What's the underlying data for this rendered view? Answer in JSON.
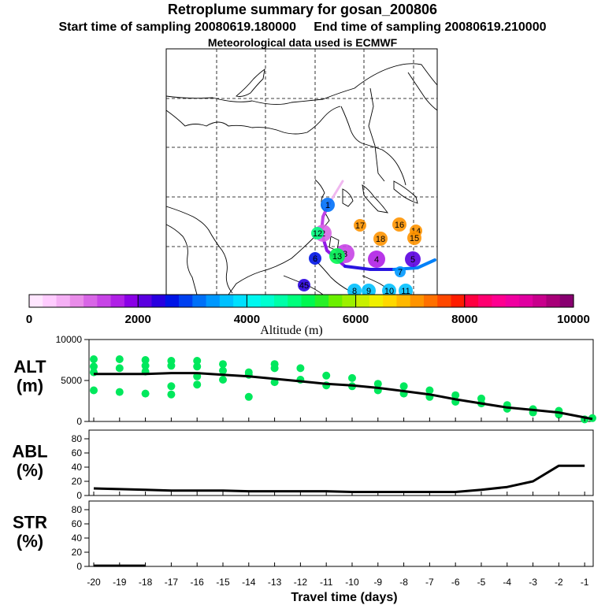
{
  "header": {
    "title": "Retroplume summary for gosan_200806",
    "start_label": "Start time of sampling 20080619.180000",
    "end_label": "End time of sampling 20080619.210000",
    "met_label": "Meteorological data used is ECMWF"
  },
  "colorbar": {
    "ticks": [
      "0",
      "2000",
      "4000",
      "6000",
      "8000",
      "10000"
    ],
    "label": "Altitude (m)",
    "min": 0,
    "max": 10000,
    "colors": [
      "#ffe6ff",
      "#ffccff",
      "#f5b0f5",
      "#e98ce9",
      "#d866e6",
      "#c744e6",
      "#b020e6",
      "#8a00e6",
      "#5a00e0",
      "#2800e0",
      "#0014e6",
      "#0040f0",
      "#0070f8",
      "#0098ff",
      "#00c0ff",
      "#00e0ff",
      "#00f8f0",
      "#00ffd0",
      "#00ffa8",
      "#00ff7c",
      "#00f850",
      "#28f028",
      "#6af000",
      "#9cf000",
      "#c8f000",
      "#f0f000",
      "#ffd800",
      "#ffb800",
      "#ff9400",
      "#ff7000",
      "#ff4800",
      "#ff1c00",
      "#ff0040",
      "#ff0070",
      "#ff0090",
      "#f000a0",
      "#e000a0",
      "#c8008c",
      "#a80078",
      "#880070"
    ]
  },
  "map": {
    "trajectory_labels": [
      "1",
      "2",
      "3",
      "4",
      "5",
      "6",
      "7",
      "8",
      "9",
      "10",
      "11",
      "12",
      "13",
      "14",
      "15",
      "16",
      "17",
      "18",
      "45"
    ]
  },
  "chart_data": [
    {
      "type": "line",
      "panel": "ALT",
      "ylabel": "ALT\n(m)",
      "xlabel": "Travel time (days)",
      "x": [
        -0.7,
        -2,
        -3,
        -4,
        -5,
        -6,
        -7,
        -8,
        -9,
        -10,
        -11,
        -12,
        -13,
        -14,
        -15,
        -16,
        -17,
        -18,
        -19,
        -20
      ],
      "y": [
        300,
        1100,
        1400,
        1700,
        2200,
        2700,
        3300,
        3700,
        4100,
        4400,
        4600,
        4900,
        5200,
        5500,
        5700,
        5900,
        5900,
        5800,
        5800,
        5800
      ],
      "ylim": [
        0,
        10000
      ],
      "yticks": [
        "0",
        "5000",
        "10000"
      ],
      "scatter": {
        "color": "#00e85c",
        "points": [
          [
            -0.7,
            400
          ],
          [
            -1,
            250
          ],
          [
            -2,
            1300
          ],
          [
            -2,
            850
          ],
          [
            -3,
            1500
          ],
          [
            -3,
            1100
          ],
          [
            -4,
            2000
          ],
          [
            -4,
            1550
          ],
          [
            -5,
            2800
          ],
          [
            -5,
            2200
          ],
          [
            -6,
            3200
          ],
          [
            -6,
            2400
          ],
          [
            -7,
            3800
          ],
          [
            -7,
            3000
          ],
          [
            -8,
            4300
          ],
          [
            -8,
            3400
          ],
          [
            -9,
            4600
          ],
          [
            -9,
            3800
          ],
          [
            -10,
            5300
          ],
          [
            -10,
            4300
          ],
          [
            -11,
            5600
          ],
          [
            -11,
            4400
          ],
          [
            -12,
            6500
          ],
          [
            -12,
            5100
          ],
          [
            -13,
            7000
          ],
          [
            -13,
            6500
          ],
          [
            -13,
            4800
          ],
          [
            -14,
            6000
          ],
          [
            -14,
            5700
          ],
          [
            -14,
            3000
          ],
          [
            -15,
            7000
          ],
          [
            -15,
            6200
          ],
          [
            -15,
            5100
          ],
          [
            -16,
            7400
          ],
          [
            -16,
            6700
          ],
          [
            -16,
            5500
          ],
          [
            -16,
            4500
          ],
          [
            -17,
            7400
          ],
          [
            -17,
            6800
          ],
          [
            -17,
            4300
          ],
          [
            -17,
            3300
          ],
          [
            -18,
            7500
          ],
          [
            -18,
            6800
          ],
          [
            -18,
            6100
          ],
          [
            -18,
            3400
          ],
          [
            -19,
            7600
          ],
          [
            -19,
            6500
          ],
          [
            -19,
            3600
          ],
          [
            -20,
            7600
          ],
          [
            -20,
            6700
          ],
          [
            -20,
            6000
          ],
          [
            -20,
            3800
          ]
        ]
      }
    },
    {
      "type": "line",
      "panel": "ABL",
      "ylabel": "ABL\n(%)",
      "x": [
        -1,
        -2,
        -3,
        -4,
        -5,
        -6,
        -7,
        -8,
        -9,
        -10,
        -11,
        -12,
        -13,
        -14,
        -15,
        -16,
        -17,
        -18,
        -19,
        -20
      ],
      "y": [
        42,
        42,
        20,
        12,
        8,
        5,
        5,
        5,
        5,
        5,
        6,
        6,
        6,
        6,
        7,
        7,
        7,
        8,
        9,
        10
      ],
      "ylim": [
        0,
        90
      ],
      "yticks": [
        "0",
        "20",
        "40",
        "60",
        "80"
      ]
    },
    {
      "type": "line",
      "panel": "STR",
      "ylabel": "STR\n(%)",
      "xlabel": "Travel time (days)",
      "x": [
        -20,
        -19,
        -18,
        -17,
        -16,
        -15,
        -14,
        -13,
        -12,
        -11,
        -10,
        -9,
        -8,
        -7,
        -6,
        -5,
        -4,
        -3,
        -2,
        -1
      ],
      "y": [
        1,
        1,
        1,
        0,
        0,
        0,
        0,
        0,
        0,
        0,
        0,
        0,
        0,
        0,
        0,
        0,
        0,
        0,
        0,
        0
      ],
      "ylim": [
        0,
        90
      ],
      "yticks": [
        "0",
        "20",
        "40",
        "60",
        "80"
      ],
      "xticks": [
        "-20",
        "-19",
        "-18",
        "-17",
        "-16",
        "-15",
        "-14",
        "-13",
        "-12",
        "-11",
        "-10",
        "-9",
        "-8",
        "-7",
        "-6",
        "-5",
        "-4",
        "-3",
        "-2",
        "-1"
      ]
    }
  ]
}
